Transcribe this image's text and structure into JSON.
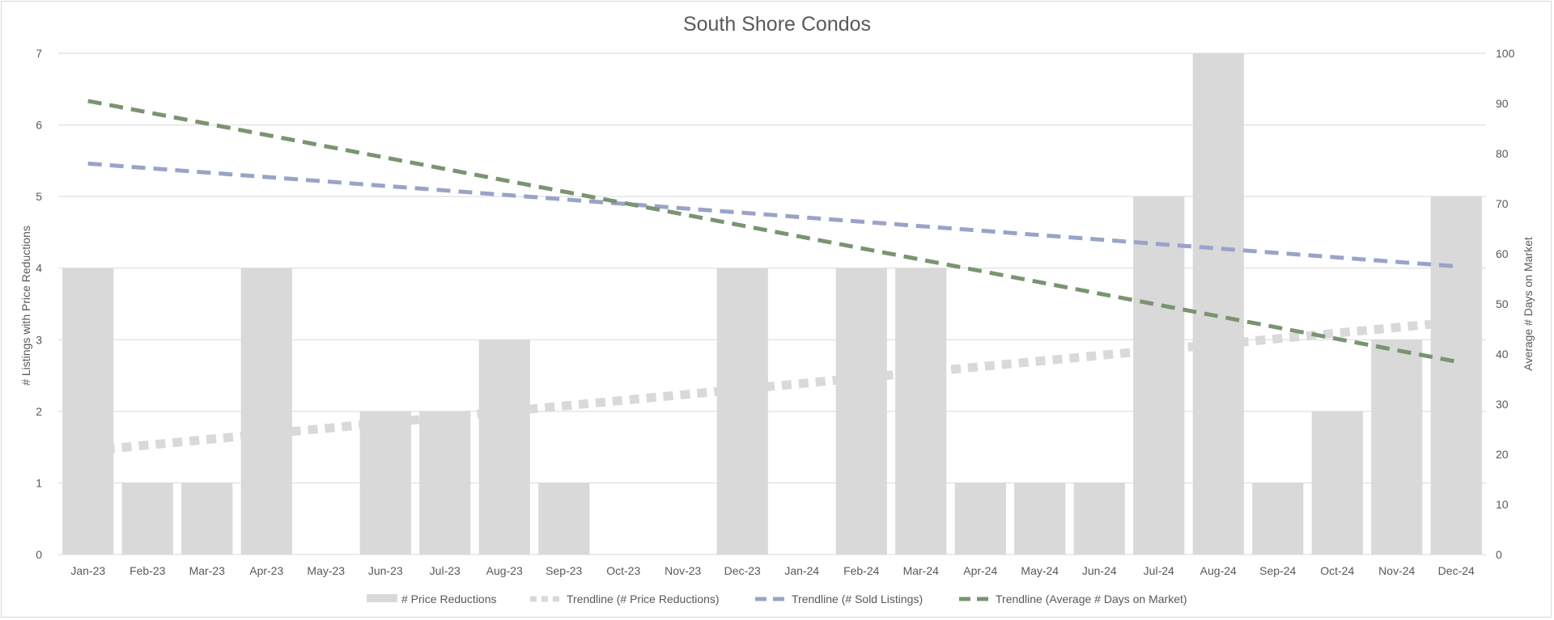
{
  "chart_data": {
    "type": "bar",
    "title": "South Shore Condos",
    "ylabel": "# Listings with Price Reductions",
    "y2label": "Average # Days on Market",
    "ylim": [
      0,
      7
    ],
    "y2lim": [
      0,
      100
    ],
    "yticks": [
      "0",
      "1",
      "2",
      "3",
      "4",
      "5",
      "6",
      "7"
    ],
    "y2ticks": [
      "0",
      "10",
      "20",
      "30",
      "40",
      "50",
      "60",
      "70",
      "80",
      "90",
      "100"
    ],
    "grid": true,
    "legend_position": "bottom",
    "categories": [
      "Jan-23",
      "Feb-23",
      "Mar-23",
      "Apr-23",
      "May-23",
      "Jun-23",
      "Jul-23",
      "Aug-23",
      "Sep-23",
      "Oct-23",
      "Nov-23",
      "Dec-23",
      "Jan-24",
      "Feb-24",
      "Mar-24",
      "Apr-24",
      "May-24",
      "Jun-24",
      "Jul-24",
      "Aug-24",
      "Sep-24",
      "Oct-24",
      "Nov-24",
      "Dec-24"
    ],
    "series": [
      {
        "name": "# Price Reductions",
        "kind": "bar",
        "axis": "left",
        "color": "#d9d9d9",
        "values": [
          4,
          1,
          1,
          4,
          0,
          2,
          2,
          3,
          1,
          0,
          0,
          4,
          0,
          4,
          4,
          1,
          1,
          1,
          5,
          7,
          1,
          2,
          3,
          5
        ]
      },
      {
        "name": "Trendline (# Price Reductions)",
        "kind": "trendline",
        "axis": "left",
        "color": "#d9d9d9",
        "start": 1.45,
        "end": 3.25
      },
      {
        "name": "Trendline (# Sold Listings)",
        "kind": "trendline",
        "axis": "right",
        "color": "#9aa3c7",
        "start": 78,
        "end": 57.5
      },
      {
        "name": "Trendline (Average # Days on Market)",
        "kind": "trendline",
        "axis": "right",
        "color": "#7a9472",
        "start": 90.5,
        "end": 38.5
      }
    ]
  }
}
